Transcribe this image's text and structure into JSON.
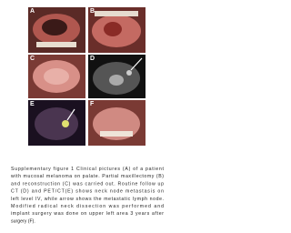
{
  "figure": {
    "panels": [
      "A",
      "B",
      "C",
      "D",
      "E",
      "F"
    ],
    "caption": [
      "Supplementary figure 1 Clinical pictures (A) of a patient",
      "with mucosal melanoma on palate. Partial maxillectomy (B)",
      "and reconstruction (C) was carried out. Routine follow up",
      "CT (D) and PET/CT(E) shows neck node metastasis on",
      "left level IV, while arrow shows the metastatic lymph node.",
      "Modified radical neck dissection was performed and",
      "implant surgery was done on upper left area 3 years after",
      "surgery (F)."
    ]
  }
}
